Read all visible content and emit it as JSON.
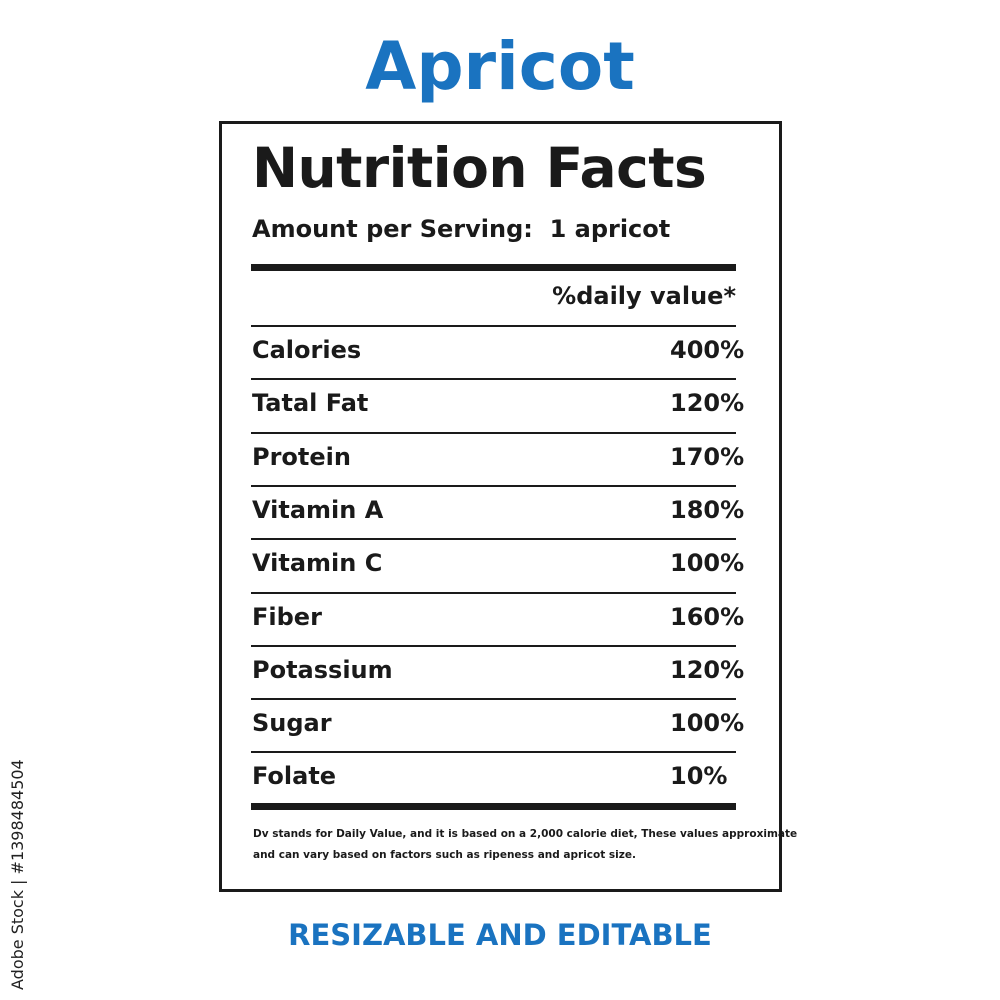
{
  "title": "Apricot",
  "label": {
    "heading": "Nutrition Facts",
    "serving": "Amount per Serving:  1 apricot",
    "column_header": "%daily value*",
    "rows": [
      [
        "Calories",
        "400%"
      ],
      [
        "Tatal Fat",
        "120%"
      ],
      [
        "Protein",
        "170%"
      ],
      [
        "Vitamin A",
        "180%"
      ],
      [
        "Vitamin C",
        "100%"
      ],
      [
        "Fiber",
        "160%"
      ],
      [
        "Potassium",
        "120%"
      ],
      [
        "Sugar",
        "100%"
      ],
      [
        "Folate",
        "10%"
      ]
    ],
    "footnote": [
      "Dv stands for Daily Value, and it is based on a 2,000 calorie diet, These values approximate",
      "and can vary based on factors such as ripeness and apricot size."
    ]
  },
  "tagline": "RESIZABLE AND EDITABLE",
  "watermark": "Adobe Stock | #1398484504"
}
